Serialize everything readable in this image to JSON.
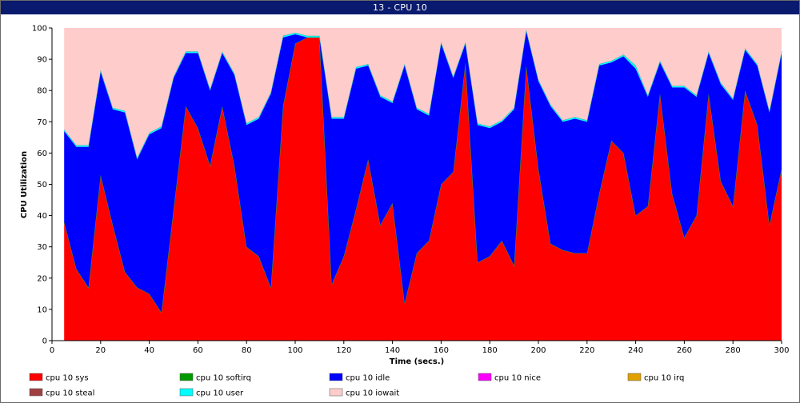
{
  "window": {
    "title": "13 - CPU 10"
  },
  "chart_data": {
    "type": "area",
    "stacked": true,
    "xlabel": "Time (secs.)",
    "ylabel": "CPU Utilization",
    "xlim": [
      0,
      300
    ],
    "ylim": [
      0,
      100
    ],
    "xticks": [
      0,
      20,
      40,
      60,
      80,
      100,
      120,
      140,
      160,
      180,
      200,
      220,
      240,
      260,
      280,
      300
    ],
    "yticks": [
      0,
      10,
      20,
      30,
      40,
      50,
      60,
      70,
      80,
      90,
      100
    ],
    "grid": false,
    "legend_position": "bottom",
    "x": [
      5,
      10,
      15,
      20,
      25,
      30,
      35,
      40,
      45,
      50,
      55,
      60,
      65,
      70,
      75,
      80,
      85,
      90,
      95,
      100,
      105,
      110,
      115,
      120,
      125,
      130,
      135,
      140,
      145,
      150,
      155,
      160,
      165,
      170,
      175,
      180,
      185,
      190,
      195,
      200,
      205,
      210,
      215,
      220,
      225,
      230,
      235,
      240,
      245,
      250,
      255,
      260,
      265,
      270,
      275,
      280,
      285,
      290,
      295,
      300
    ],
    "series": [
      {
        "name": "cpu 10 sys",
        "color": "#ff0000",
        "values": [
          38,
          23,
          17,
          53,
          37,
          22,
          17,
          15,
          9,
          42,
          75,
          68,
          56,
          75,
          56,
          30,
          27,
          17,
          75,
          95,
          97,
          97,
          18,
          27,
          42,
          58,
          37,
          44,
          12,
          28,
          32,
          50,
          54,
          89,
          25,
          27,
          32,
          24,
          88,
          55,
          31,
          29,
          28,
          28,
          47,
          64,
          60,
          40,
          43,
          79,
          47,
          33,
          40,
          79,
          51,
          43,
          80,
          69,
          37,
          55
        ]
      },
      {
        "name": "cpu 10 softirq",
        "color": "#009900",
        "values": [
          0,
          0,
          0,
          0,
          0,
          0,
          0,
          0,
          0,
          0,
          0,
          0,
          0,
          0,
          0,
          0,
          0,
          0,
          0,
          0,
          0,
          0,
          0,
          0,
          0,
          0,
          0,
          0,
          0,
          0,
          0,
          0,
          0,
          0,
          0,
          0,
          0,
          0,
          0,
          0,
          0,
          0,
          0,
          0,
          0,
          0,
          0,
          0,
          0,
          0,
          0,
          0,
          0,
          0,
          0,
          0,
          0,
          0,
          0,
          0
        ]
      },
      {
        "name": "cpu 10 idle",
        "color": "#0000ff",
        "values": [
          29,
          39,
          45,
          33,
          37,
          51,
          41,
          51,
          59,
          42,
          17,
          24,
          24,
          17,
          29,
          39,
          44,
          62,
          22,
          3,
          0,
          0,
          53,
          44,
          45,
          30,
          41,
          32,
          76,
          46,
          40,
          45,
          30,
          6,
          44,
          41,
          38,
          50,
          11,
          28,
          44,
          41,
          43,
          42,
          41,
          25,
          31,
          47,
          35,
          10,
          34,
          48,
          38,
          13,
          31,
          34,
          13,
          19,
          36,
          37
        ]
      },
      {
        "name": "cpu 10 nice",
        "color": "#ff00ff",
        "values": [
          0,
          0,
          0,
          0,
          0,
          0,
          0,
          0,
          0,
          0,
          0,
          0,
          0,
          0,
          0,
          0,
          0,
          0,
          0,
          0,
          0,
          0,
          0,
          0,
          0,
          0,
          0,
          0,
          0,
          0,
          0,
          0,
          0,
          0,
          0,
          0,
          0,
          0,
          0,
          0,
          0,
          0,
          0,
          0,
          0,
          0,
          0,
          0,
          0,
          0,
          0,
          0,
          0,
          0,
          0,
          0,
          0,
          0,
          0,
          0
        ]
      },
      {
        "name": "cpu 10 irq",
        "color": "#e0a000",
        "values": [
          0,
          0,
          0,
          0,
          0,
          0,
          0,
          0,
          0,
          0,
          0,
          0,
          0,
          0,
          0,
          0,
          0,
          0,
          0,
          0,
          0,
          0,
          0,
          0,
          0,
          0,
          0,
          0,
          0,
          0,
          0,
          0,
          0,
          0,
          0,
          0,
          0,
          0,
          0,
          0,
          0,
          0,
          0,
          0,
          0,
          0,
          0,
          0,
          0,
          0,
          0,
          0,
          0,
          0,
          0,
          0,
          0,
          0,
          0,
          0
        ]
      },
      {
        "name": "cpu 10 steal",
        "color": "#a04040",
        "values": [
          0,
          0,
          0,
          0,
          0,
          0,
          0,
          0,
          0,
          0,
          0,
          0,
          0,
          0,
          0,
          0,
          0,
          0,
          0,
          0,
          0,
          0,
          0,
          0,
          0,
          0,
          0,
          0,
          0,
          0,
          0,
          0,
          0,
          0,
          0,
          0,
          0,
          0,
          0,
          0,
          0,
          0,
          0,
          0,
          0,
          0,
          0,
          0,
          0,
          0,
          0,
          0,
          0,
          0,
          0,
          0,
          0,
          0,
          0,
          0
        ]
      },
      {
        "name": "cpu 10 user",
        "color": "#00ffff",
        "values": [
          0.5,
          0.5,
          0.5,
          0.5,
          0.5,
          0.5,
          0.5,
          0.5,
          0.5,
          0.5,
          0.5,
          0.5,
          0.5,
          0.5,
          0.5,
          0.5,
          0.5,
          0.5,
          0.5,
          0.5,
          0.5,
          0.5,
          0.5,
          0.5,
          0.5,
          0.5,
          0.5,
          0.5,
          0.5,
          0.5,
          0.5,
          0.5,
          0.5,
          0.5,
          0.5,
          0.5,
          0.5,
          0.5,
          0.5,
          0.5,
          0.5,
          0.5,
          0.5,
          0.5,
          0.5,
          0.5,
          0.5,
          1,
          0.5,
          0.5,
          0.5,
          0.5,
          0.5,
          0.5,
          0.5,
          0.5,
          0.5,
          0.5,
          0.5,
          0.5
        ]
      },
      {
        "name": "cpu 10 iowait",
        "color": "#ffcccc",
        "values": [
          32.5,
          37.5,
          37.5,
          13.5,
          25.5,
          26.5,
          41.5,
          33.5,
          31.5,
          15.5,
          7.5,
          7.5,
          19.5,
          7.5,
          14.5,
          30.5,
          28.5,
          20.5,
          2.5,
          1.5,
          2.5,
          2.5,
          28.5,
          28.5,
          12.5,
          11.5,
          21.5,
          23.5,
          11.5,
          25.5,
          27.5,
          4.5,
          15.5,
          4.5,
          30.5,
          31.5,
          29.5,
          25.5,
          0.5,
          16.5,
          24.5,
          29.5,
          28.5,
          29.5,
          11.5,
          10.5,
          8.5,
          12,
          21.5,
          10.5,
          18.5,
          18.5,
          21.5,
          7.5,
          17.5,
          22.5,
          6.5,
          11.5,
          26.5,
          7.5
        ]
      }
    ]
  }
}
